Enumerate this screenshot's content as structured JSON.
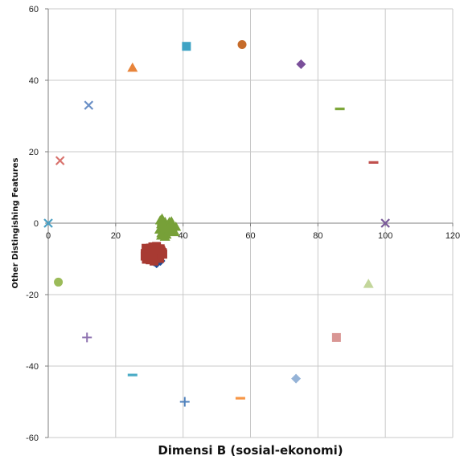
{
  "chart_data": {
    "type": "scatter",
    "title": "",
    "xlabel": "Dimensi B (sosial-ekonomi)",
    "ylabel": "Other Distingishing Features",
    "xlim": [
      0,
      120
    ],
    "ylim": [
      -60,
      60
    ],
    "xticks": [
      0,
      20,
      40,
      60,
      80,
      100,
      120
    ],
    "yticks": [
      -60,
      -40,
      -20,
      0,
      20,
      40,
      60
    ],
    "grid": true,
    "legend": "none",
    "points": [
      {
        "x": 41,
        "y": 49.5,
        "marker": "square",
        "color": "#3fa3c4"
      },
      {
        "x": 57.5,
        "y": 50,
        "marker": "circle",
        "color": "#c66b2a"
      },
      {
        "x": 75,
        "y": 44.5,
        "marker": "diamond",
        "color": "#7a4f9a"
      },
      {
        "x": 25,
        "y": 43.5,
        "marker": "triangle",
        "color": "#e8843a"
      },
      {
        "x": 12,
        "y": 33,
        "marker": "x",
        "color": "#6a8fc6"
      },
      {
        "x": 86.5,
        "y": 32,
        "marker": "dash",
        "color": "#7ea73a"
      },
      {
        "x": 3.5,
        "y": 17.5,
        "marker": "x",
        "color": "#d9736e"
      },
      {
        "x": 96.5,
        "y": 17,
        "marker": "dash",
        "color": "#c0504d"
      },
      {
        "x": 0,
        "y": 0,
        "marker": "x",
        "color": "#4aa0c4"
      },
      {
        "x": 100,
        "y": 0,
        "marker": "x",
        "color": "#7a5a9a"
      },
      {
        "x": 3,
        "y": -16.5,
        "marker": "circle",
        "color": "#9bbb59"
      },
      {
        "x": 95,
        "y": -17,
        "marker": "triangle",
        "color": "#c3d69b"
      },
      {
        "x": 11.5,
        "y": -32,
        "marker": "plus",
        "color": "#8e72b0"
      },
      {
        "x": 85.5,
        "y": -32,
        "marker": "square",
        "color": "#d99694"
      },
      {
        "x": 25,
        "y": -42.5,
        "marker": "dash",
        "color": "#4bacc6"
      },
      {
        "x": 73.5,
        "y": -43.5,
        "marker": "diamond",
        "color": "#95b3d7"
      },
      {
        "x": 40.5,
        "y": -50,
        "marker": "plus",
        "color": "#4f81bd"
      },
      {
        "x": 57,
        "y": -49,
        "marker": "dash",
        "color": "#f79646"
      }
    ],
    "clusters": [
      {
        "marker": "triangle",
        "color": "#77a038",
        "center": [
          35,
          -1
        ],
        "spread": [
          3,
          3
        ],
        "count": 30
      },
      {
        "marker": "diamond",
        "color": "#1f4e9a",
        "center": [
          31.5,
          -9
        ],
        "spread": [
          2.5,
          2.5
        ],
        "count": 25
      },
      {
        "marker": "square",
        "color": "#a83a32",
        "center": [
          31,
          -8.5
        ],
        "spread": [
          3,
          2.2
        ],
        "count": 45
      }
    ]
  }
}
